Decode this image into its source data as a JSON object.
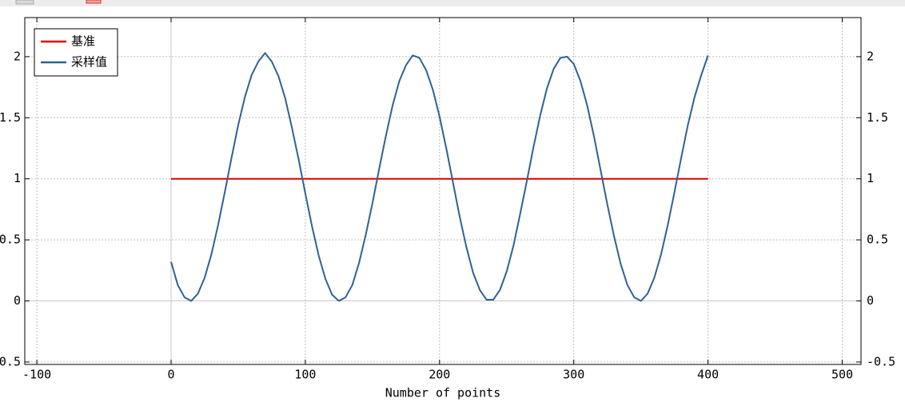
{
  "chart_data": {
    "type": "line",
    "x_label": "Number of points",
    "xlim": [
      -109,
      514
    ],
    "ylim": [
      -0.52,
      2.32
    ],
    "xticks": [
      -100,
      0,
      100,
      200,
      300,
      400,
      500
    ],
    "yticks": [
      -0.5,
      0,
      0.5,
      1,
      1.5,
      2
    ],
    "grid": true,
    "legend": "upper left",
    "series": [
      {
        "name": "基准",
        "color": "#e00000",
        "x": [
          0,
          400
        ],
        "values": [
          1,
          1
        ]
      },
      {
        "name": "采样值",
        "color": "#2f6196",
        "x": [
          0,
          5,
          10,
          15,
          20,
          25,
          30,
          35,
          40,
          45,
          50,
          55,
          60,
          65,
          70,
          75,
          80,
          85,
          90,
          95,
          100,
          105,
          110,
          115,
          120,
          125,
          130,
          135,
          140,
          145,
          150,
          155,
          160,
          165,
          170,
          175,
          180,
          185,
          190,
          195,
          200,
          205,
          210,
          215,
          220,
          225,
          230,
          235,
          240,
          245,
          250,
          255,
          260,
          265,
          270,
          275,
          280,
          285,
          290,
          295,
          300,
          305,
          310,
          315,
          320,
          325,
          330,
          335,
          340,
          345,
          350,
          355,
          360,
          365,
          370,
          375,
          380,
          385,
          390,
          395,
          400
        ],
        "values": [
          0.32,
          0.13,
          0.03,
          0.0,
          0.06,
          0.19,
          0.38,
          0.62,
          0.89,
          1.17,
          1.44,
          1.67,
          1.85,
          1.96,
          2.03,
          1.96,
          1.84,
          1.66,
          1.42,
          1.16,
          0.88,
          0.61,
          0.37,
          0.18,
          0.05,
          0.0,
          0.03,
          0.13,
          0.31,
          0.54,
          0.8,
          1.08,
          1.35,
          1.6,
          1.8,
          1.93,
          2.01,
          1.99,
          1.89,
          1.73,
          1.51,
          1.25,
          0.97,
          0.69,
          0.44,
          0.23,
          0.09,
          0.01,
          0.01,
          0.09,
          0.24,
          0.45,
          0.71,
          0.98,
          1.26,
          1.52,
          1.74,
          1.9,
          1.99,
          2.0,
          1.94,
          1.8,
          1.6,
          1.35,
          1.07,
          0.79,
          0.53,
          0.3,
          0.13,
          0.03,
          0.0,
          0.06,
          0.19,
          0.38,
          0.62,
          0.89,
          1.17,
          1.44,
          1.67,
          1.85,
          2.01
        ]
      }
    ]
  }
}
